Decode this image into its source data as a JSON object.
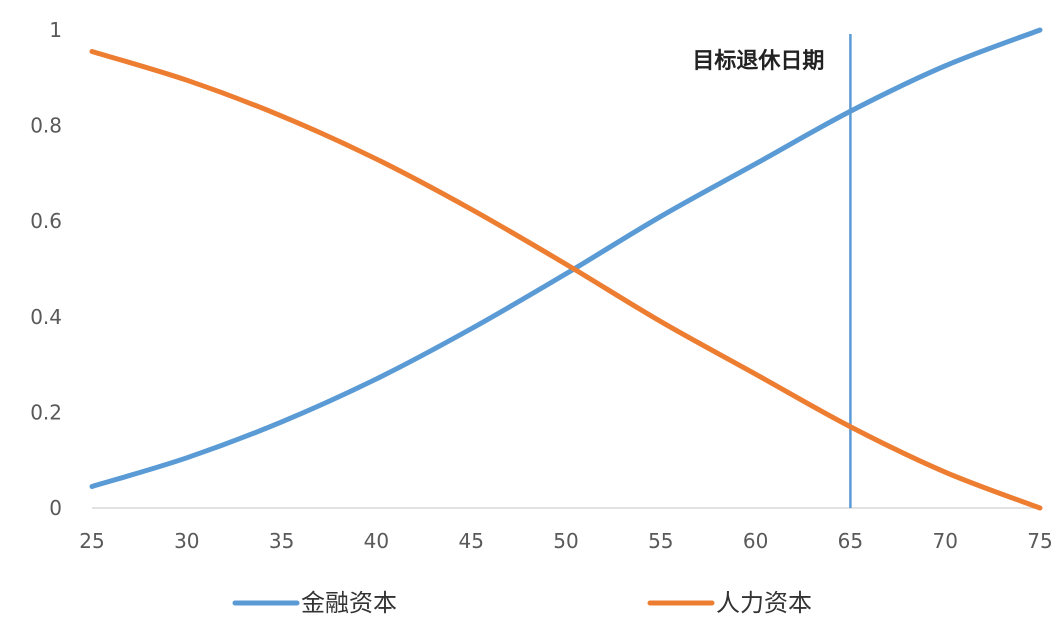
{
  "chart_data": {
    "type": "line",
    "title": "",
    "xlabel": "",
    "ylabel": "",
    "xlim": [
      25,
      75
    ],
    "ylim": [
      0,
      1
    ],
    "x_ticks": [
      "25",
      "30",
      "35",
      "40",
      "45",
      "50",
      "55",
      "60",
      "65",
      "70",
      "75"
    ],
    "y_ticks": [
      "0",
      "0.2",
      "0.4",
      "0.6",
      "0.8",
      "1"
    ],
    "grid": false,
    "legend": "bottom",
    "x": [
      25,
      30,
      35,
      40,
      45,
      50,
      55,
      60,
      65,
      70,
      75
    ],
    "series": [
      {
        "name": "金融资本",
        "color": "#5b9bd5",
        "values": [
          0.045,
          0.105,
          0.18,
          0.27,
          0.375,
          0.49,
          0.61,
          0.72,
          0.83,
          0.925,
          1.0
        ]
      },
      {
        "name": "人力资本",
        "color": "#ed7d31",
        "values": [
          0.955,
          0.895,
          0.82,
          0.73,
          0.625,
          0.51,
          0.39,
          0.28,
          0.17,
          0.075,
          0.0
        ]
      }
    ],
    "annotations": [
      {
        "type": "vline",
        "x": 65,
        "label": "目标退休日期",
        "color": "#5b9bd5"
      }
    ]
  }
}
